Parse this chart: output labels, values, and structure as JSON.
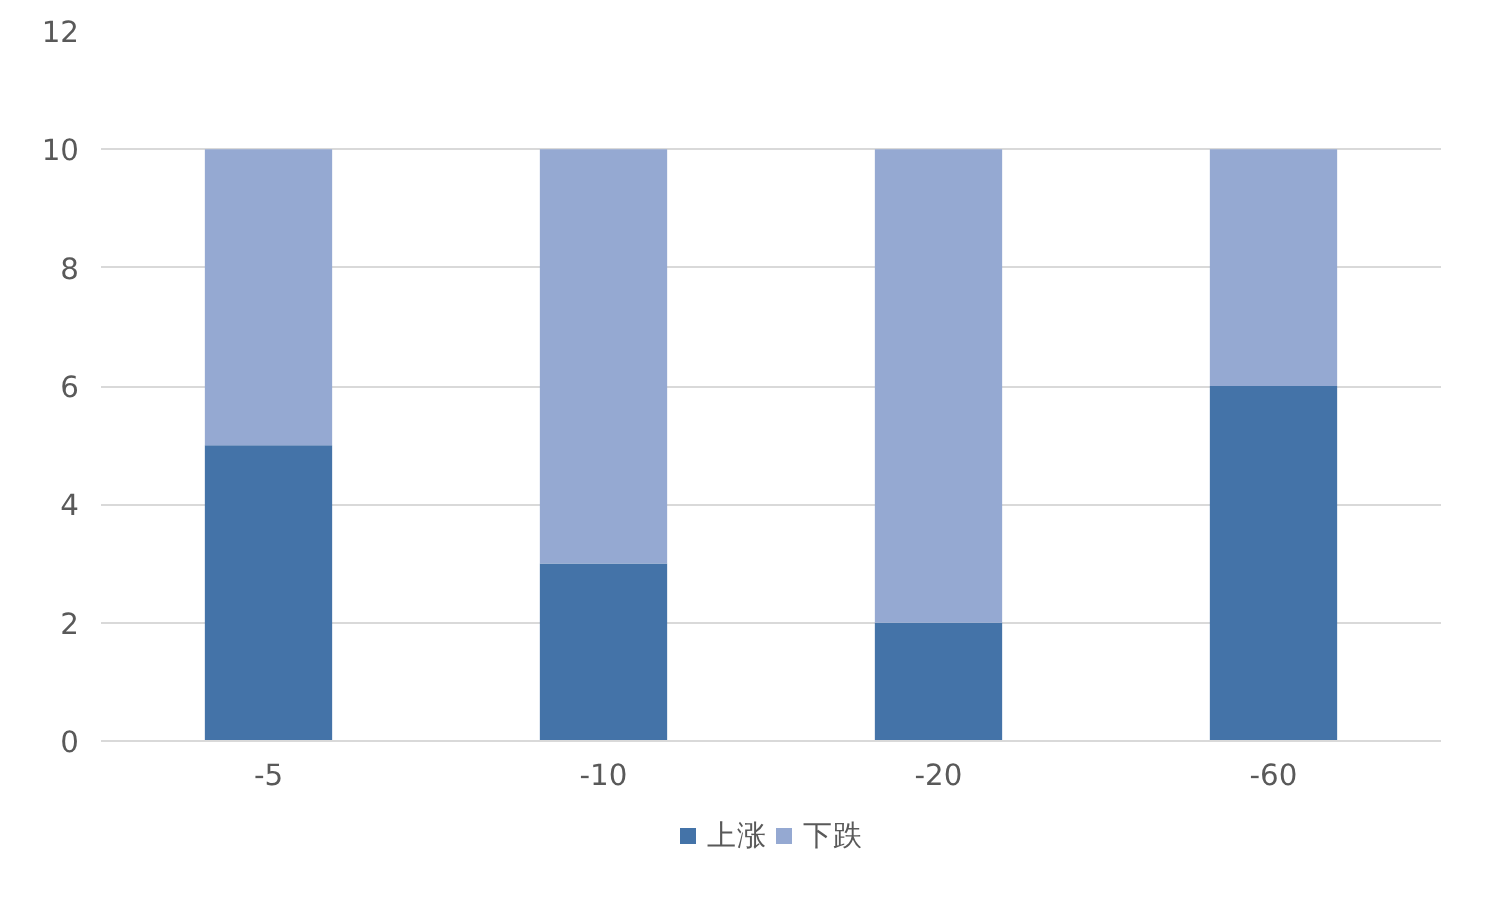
{
  "chart_data": {
    "type": "bar",
    "stacked": true,
    "categories": [
      "-5",
      "-10",
      "-20",
      "-60"
    ],
    "series": [
      {
        "name": "上涨",
        "color": "#4473a8",
        "values": [
          5,
          3,
          2,
          6
        ]
      },
      {
        "name": "下跌",
        "color": "#95a9d2",
        "values": [
          5,
          7,
          8,
          4
        ]
      }
    ],
    "ylim": [
      0,
      12
    ],
    "yticks": [
      0,
      2,
      4,
      6,
      8,
      10,
      12
    ],
    "grid": "y",
    "legend": "bottom"
  }
}
